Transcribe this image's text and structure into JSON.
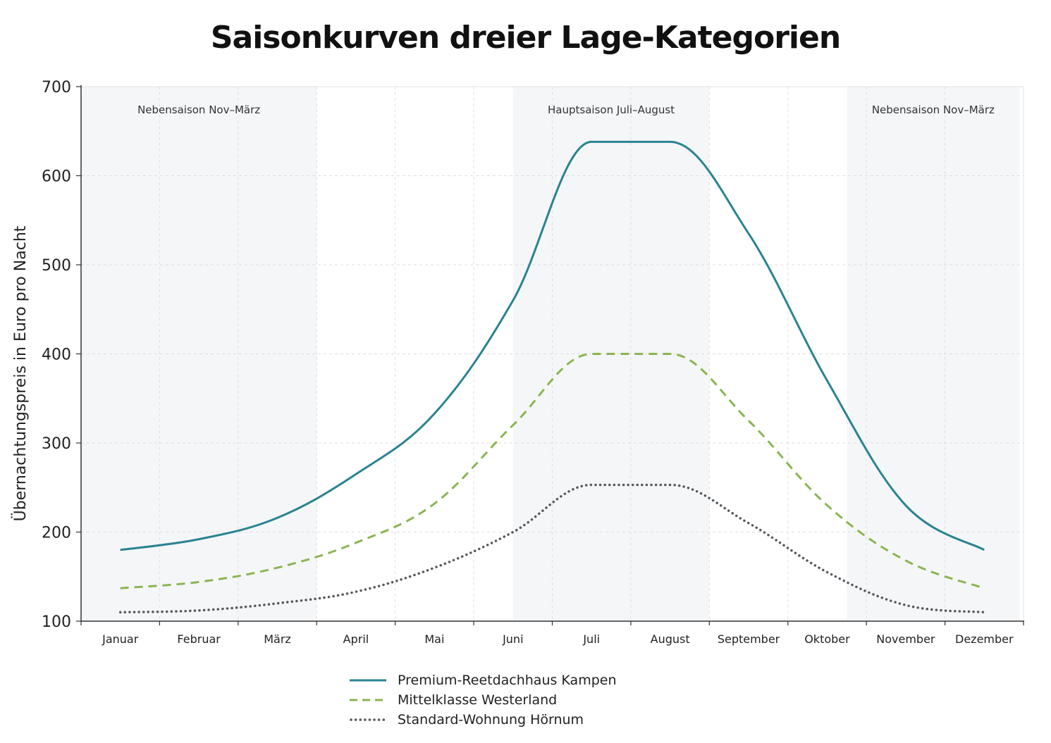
{
  "chart_data": {
    "type": "line",
    "title": "Saisonkurven dreier Lage-Kategorien",
    "xlabel": "",
    "ylabel": "Übernachtungspreis in Euro pro Nacht",
    "ylim": [
      100,
      700
    ],
    "yticks": [
      "100",
      "200",
      "300",
      "400",
      "500",
      "600",
      "700"
    ],
    "categories": [
      "Januar",
      "Februar",
      "März",
      "April",
      "Mai",
      "Juni",
      "Juli",
      "August",
      "September",
      "Oktober",
      "November",
      "Dezember"
    ],
    "grid": true,
    "legend_position": "bottom",
    "season_bands": [
      {
        "label": "Nebensaison Nov–März",
        "from": 0,
        "to": 3
      },
      {
        "label": "Hauptsaison Juli–August",
        "from": 5.5,
        "to": 8
      },
      {
        "label": "Nebensaison Nov–März",
        "from": 9.75,
        "to": 11.95
      }
    ],
    "series": [
      {
        "name": "Premium-Reetdachhaus Kampen",
        "color": "#2a8391",
        "dash": "solid",
        "values": [
          180,
          192,
          216,
          265,
          333,
          460,
          638,
          638,
          535,
          370,
          230,
          180
        ]
      },
      {
        "name": "Mittelklasse Westerland",
        "color": "#8bb552",
        "dash": "dashed",
        "values": [
          137,
          144,
          160,
          188,
          232,
          320,
          400,
          400,
          325,
          230,
          168,
          137
        ]
      },
      {
        "name": "Standard-Wohnung Hörnum",
        "color": "#55595e",
        "dash": "dotted",
        "values": [
          110,
          112,
          120,
          133,
          160,
          200,
          253,
          253,
          210,
          155,
          118,
          110
        ]
      }
    ]
  }
}
